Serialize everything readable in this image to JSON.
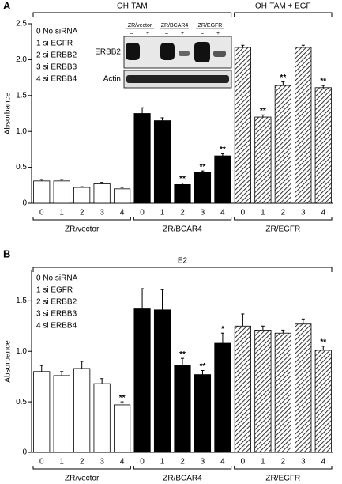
{
  "chart_data": [
    {
      "type": "bar",
      "panel": "A",
      "ylabel": "Absorbance",
      "categories": [
        "0",
        "1",
        "2",
        "3",
        "4"
      ],
      "legend": [
        "0 No siRNA",
        "1 si EGFR",
        "2 si ERBB2",
        "3 si ERBB3",
        "4 si ERBB4"
      ],
      "ylim": [
        0,
        2.5
      ],
      "yticks": [
        0,
        0.5,
        {
          "value": 1,
          "label": "1.0"
        },
        1.5,
        {
          "value": 2,
          "label": "2.0"
        },
        2.5
      ],
      "series": [
        {
          "name": "ZR/vector",
          "color": "#ffffff",
          "values": [
            0.31,
            0.31,
            0.22,
            0.27,
            0.2
          ],
          "errors": [
            0.02,
            0.02,
            0.01,
            0.02,
            0.02
          ]
        },
        {
          "name": "ZR/BCAR4",
          "color": "#000000",
          "values": [
            1.25,
            1.15,
            0.26,
            0.43,
            0.66
          ],
          "errors": [
            0.08,
            0.04,
            0.02,
            0.02,
            0.03
          ]
        },
        {
          "name": "ZR/EGFR",
          "color": "#ffffff",
          "hatch": true,
          "values": [
            2.17,
            1.2,
            1.64,
            2.17,
            1.61
          ],
          "errors": [
            0.03,
            0.03,
            0.05,
            0.03,
            0.03
          ]
        }
      ],
      "brackets": [
        {
          "label": "OH-TAM",
          "from": 0,
          "to": 1
        },
        {
          "label": "OH-TAM + EGF",
          "from": 2,
          "to": 2
        }
      ],
      "annotations": [
        {
          "series": 1,
          "index": 2,
          "text": "**"
        },
        {
          "series": 1,
          "index": 3,
          "text": "**"
        },
        {
          "series": 1,
          "index": 4,
          "text": "**"
        },
        {
          "series": 2,
          "index": 1,
          "text": "**"
        },
        {
          "series": 2,
          "index": 2,
          "text": "**"
        },
        {
          "series": 2,
          "index": 4,
          "text": "**"
        }
      ],
      "inset": {
        "columns": [
          "ZR/vector",
          "ZR/BCAR4",
          "ZR/EGFR"
        ],
        "lanes": [
          "–",
          "+"
        ],
        "rows": [
          "ERBB2",
          "Actin"
        ]
      }
    },
    {
      "type": "bar",
      "panel": "B",
      "ylabel": "Absorbance",
      "categories": [
        "0",
        "1",
        "2",
        "3",
        "4"
      ],
      "legend": [
        "0 No siRNA",
        "1 si EGFR",
        "2 si ERBB2",
        "3 si ERBB3",
        "4 si ERBB4"
      ],
      "ylim": [
        0,
        1.8
      ],
      "yticks": [
        0,
        0.5,
        {
          "value": 1,
          "label": "1.0"
        },
        1.5
      ],
      "series": [
        {
          "name": "ZR/vector",
          "color": "#ffffff",
          "values": [
            0.8,
            0.76,
            0.83,
            0.68,
            0.47
          ],
          "errors": [
            0.06,
            0.04,
            0.07,
            0.05,
            0.03
          ]
        },
        {
          "name": "ZR/BCAR4",
          "color": "#000000",
          "values": [
            1.42,
            1.41,
            0.86,
            0.77,
            1.08
          ],
          "errors": [
            0.2,
            0.2,
            0.07,
            0.04,
            0.1
          ]
        },
        {
          "name": "ZR/EGFR",
          "color": "#ffffff",
          "hatch": true,
          "values": [
            1.25,
            1.21,
            1.18,
            1.27,
            1.01
          ],
          "errors": [
            0.12,
            0.04,
            0.03,
            0.05,
            0.04
          ]
        }
      ],
      "brackets": [
        {
          "label": "E2",
          "from": 0,
          "to": 2
        }
      ],
      "annotations": [
        {
          "series": 0,
          "index": 4,
          "text": "**"
        },
        {
          "series": 1,
          "index": 2,
          "text": "**"
        },
        {
          "series": 1,
          "index": 3,
          "text": "**"
        },
        {
          "series": 1,
          "index": 4,
          "text": "*"
        },
        {
          "series": 2,
          "index": 4,
          "text": "**"
        }
      ]
    }
  ]
}
